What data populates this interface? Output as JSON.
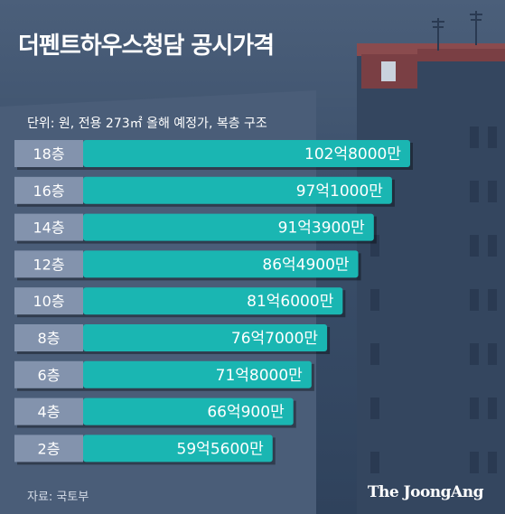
{
  "header": {
    "title": "더펜트하우스청담 공시가격"
  },
  "chart_data": {
    "type": "bar",
    "orientation": "horizontal",
    "title": "더펜트하우스청담 공시가격",
    "subtitle": "단위: 원, 전용 273㎡ 올해 예정가, 복층 구조",
    "categories": [
      "18층",
      "16층",
      "14층",
      "12층",
      "10층",
      "8층",
      "6층",
      "4층",
      "2층"
    ],
    "values": [
      1028000,
      971000,
      913900,
      864900,
      816000,
      767000,
      718000,
      660900,
      595600
    ],
    "value_unit": "만원",
    "data_labels": [
      "102억8000만",
      "97억1000만",
      "91억3900만",
      "86억4900만",
      "81억6000만",
      "76억7000만",
      "71억8000만",
      "66억900만",
      "59억5600만"
    ],
    "bar_color": "#1ab6b2",
    "label_bg_color": "#8393ad"
  },
  "footer": {
    "source": "자료: 국토부",
    "logo": "The JoongAng"
  }
}
